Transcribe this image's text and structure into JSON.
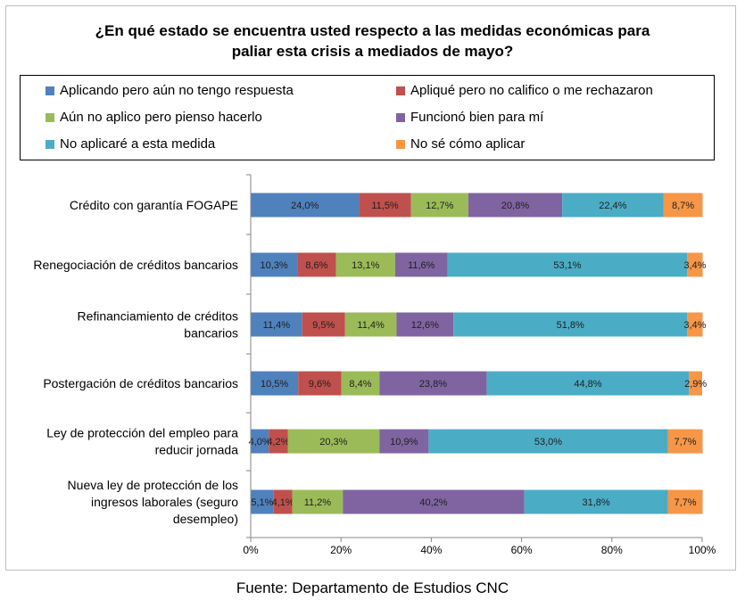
{
  "chart_data": {
    "type": "bar",
    "orientation": "horizontal",
    "stacked": true,
    "normalized_100": true,
    "title": "¿En qué estado se encuentra usted respecto a las medidas económicas para paliar esta crisis a mediados de mayo?",
    "title_lines": [
      "¿En qué estado se encuentra usted respecto a las medidas económicas para",
      "paliar esta crisis a mediados de mayo?"
    ],
    "categories": [
      [
        "Crédito con garantía FOGAPE"
      ],
      [
        "Renegociación de créditos bancarios"
      ],
      [
        "Refinanciamiento de créditos",
        "bancarios"
      ],
      [
        "Postergación de créditos bancarios"
      ],
      [
        "Ley de protección del empleo para",
        "reducir jornada"
      ],
      [
        "Nueva ley de protección de los",
        "ingresos laborales (seguro",
        "desempleo)"
      ]
    ],
    "series": [
      {
        "name": "Aplicando pero aún no tengo respuesta",
        "color": "#4f81bd",
        "values": [
          24.0,
          10.3,
          11.4,
          10.5,
          4.0,
          5.1
        ],
        "labels": [
          "24,0%",
          "10,3%",
          "11,4%",
          "10,5%",
          "4,0%",
          "5,1%"
        ]
      },
      {
        "name": "Apliqué pero no califico o me rechazaron",
        "color": "#c0504d",
        "values": [
          11.5,
          8.6,
          9.5,
          9.6,
          4.2,
          4.1
        ],
        "labels": [
          "11,5%",
          "8,6%",
          "9,5%",
          "9,6%",
          "4,2%",
          "4,1%"
        ]
      },
      {
        "name": "Aún no aplico pero pienso hacerlo",
        "color": "#9bbb59",
        "values": [
          12.7,
          13.1,
          11.4,
          8.4,
          20.3,
          11.2
        ],
        "labels": [
          "12,7%",
          "13,1%",
          "11,4%",
          "8,4%",
          "20,3%",
          "11,2%"
        ]
      },
      {
        "name": "Funcionó bien para mí",
        "color": "#8064a2",
        "values": [
          20.8,
          11.6,
          12.6,
          23.8,
          10.9,
          40.2
        ],
        "labels": [
          "20,8%",
          "11,6%",
          "12,6%",
          "23,8%",
          "10,9%",
          "40,2%"
        ]
      },
      {
        "name": "No aplicaré a esta medida",
        "color": "#4bacc6",
        "values": [
          22.4,
          53.1,
          51.8,
          44.8,
          53.0,
          31.8
        ],
        "labels": [
          "22,4%",
          "53,1%",
          "51,8%",
          "44,8%",
          "53,0%",
          "31,8%"
        ]
      },
      {
        "name": "No sé cómo aplicar",
        "color": "#f79646",
        "values": [
          8.7,
          3.4,
          3.4,
          2.9,
          7.7,
          7.7
        ],
        "labels": [
          "8,7%",
          "3,4%",
          "3,4%",
          "2,9%",
          "7,7%",
          "7,7%"
        ]
      }
    ],
    "xlim": [
      0,
      100
    ],
    "xticks": [
      "0%",
      "20%",
      "40%",
      "60%",
      "80%",
      "100%"
    ],
    "xlabel": "",
    "ylabel": "",
    "grid": false,
    "legend_position": "top"
  },
  "source": "Fuente: Departamento de Estudios CNC"
}
